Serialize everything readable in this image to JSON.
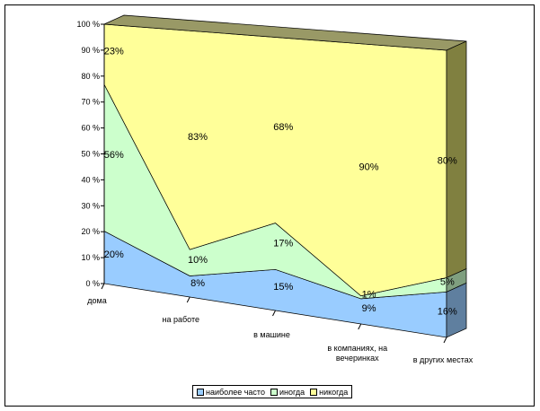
{
  "chart_data": {
    "type": "area",
    "stacked": "percent",
    "categories": [
      "дома",
      "на работе",
      "в машине",
      "в компаниях, на вечеринках",
      "в других местах"
    ],
    "category_lines": [
      [
        "дома"
      ],
      [
        "на работе"
      ],
      [
        "в машине"
      ],
      [
        "в компаниях, на",
        "вечеринках"
      ],
      [
        "в других местах"
      ]
    ],
    "series": [
      {
        "name": "наиболее часто",
        "color": "#99ccff",
        "values": [
          20,
          8,
          15,
          9,
          16
        ]
      },
      {
        "name": "иногда",
        "color": "#ccffcc",
        "values": [
          56,
          10,
          17,
          1,
          5
        ]
      },
      {
        "name": "никогда",
        "color": "#ffff99",
        "values": [
          23,
          83,
          68,
          90,
          80
        ]
      }
    ],
    "data_labels": [
      [
        "20%",
        "8%",
        "15%",
        "9%",
        "16%"
      ],
      [
        "56%",
        "10%",
        "17%",
        "1%",
        "5%"
      ],
      [
        "23%",
        "83%",
        "68%",
        "90%",
        "80%"
      ]
    ],
    "ylim": [
      0,
      100
    ],
    "y_ticks": [
      "0 %",
      "10 %",
      "20 %",
      "30 %",
      "40 %",
      "50 %",
      "60 %",
      "70 %",
      "80 %",
      "90 %",
      "100 %"
    ],
    "grid": true,
    "legend_position": "bottom",
    "wall_color": "#c0c0c0",
    "top_color": "#999966",
    "side_color": "#808040"
  }
}
